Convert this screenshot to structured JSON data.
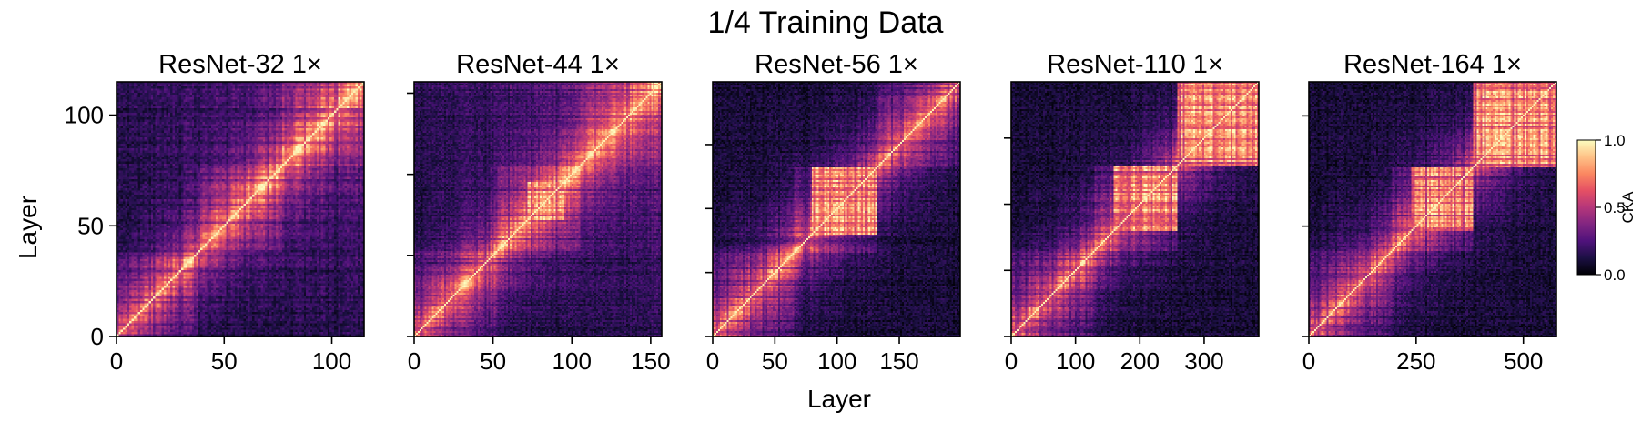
{
  "chart_data": {
    "type": "heatmap",
    "title": "1/4 Training Data",
    "xlabel": "Layer",
    "ylabel": "Layer",
    "colorscale": "magma",
    "colorbar": {
      "label": "CKA",
      "range": [
        0.0,
        1.0
      ],
      "ticks": [
        "0.0",
        "0.5",
        "1.0"
      ]
    },
    "panels": [
      {
        "title": "ResNet-32 1×",
        "layers": 115,
        "xticks": [
          0,
          50,
          100
        ],
        "xtick_labels": [
          "0",
          "50",
          "100"
        ],
        "yticks": [
          0,
          50,
          100
        ],
        "ytick_labels": [
          "0",
          "50",
          "100"
        ],
        "block_boundaries": [
          38,
          77
        ],
        "blocks_high": []
      },
      {
        "title": "ResNet-44 1×",
        "layers": 157,
        "xticks": [
          0,
          50,
          100,
          150
        ],
        "xtick_labels": [
          "0",
          "50",
          "100",
          "150"
        ],
        "yticks": [
          0,
          50,
          100,
          150
        ],
        "ytick_labels": [],
        "block_boundaries": [
          53,
          105
        ],
        "blocks_high": [
          [
            72,
            95
          ]
        ]
      },
      {
        "title": "ResNet-56 1×",
        "layers": 199,
        "xticks": [
          0,
          50,
          100,
          150
        ],
        "xtick_labels": [
          "0",
          "50",
          "100",
          "150"
        ],
        "yticks": [
          0,
          50,
          100,
          150
        ],
        "ytick_labels": [],
        "block_boundaries": [
          66,
          132
        ],
        "blocks_high": [
          [
            80,
            132
          ]
        ]
      },
      {
        "title": "ResNet-110 1×",
        "layers": 385,
        "xticks": [
          0,
          100,
          200,
          300
        ],
        "xtick_labels": [
          "0",
          "100",
          "200",
          "300"
        ],
        "yticks": [
          0,
          100,
          200,
          300
        ],
        "ytick_labels": [],
        "block_boundaries": [
          128,
          258
        ],
        "blocks_high": [
          [
            160,
            258
          ],
          [
            258,
            385
          ]
        ]
      },
      {
        "title": "ResNet-164 1×",
        "layers": 577,
        "xticks": [
          0,
          250,
          500
        ],
        "xtick_labels": [
          "0",
          "250",
          "500"
        ],
        "yticks": [
          0,
          250,
          500
        ],
        "ytick_labels": [],
        "block_boundaries": [
          192,
          385
        ],
        "blocks_high": [
          [
            240,
            385
          ],
          [
            385,
            577
          ]
        ]
      }
    ]
  }
}
